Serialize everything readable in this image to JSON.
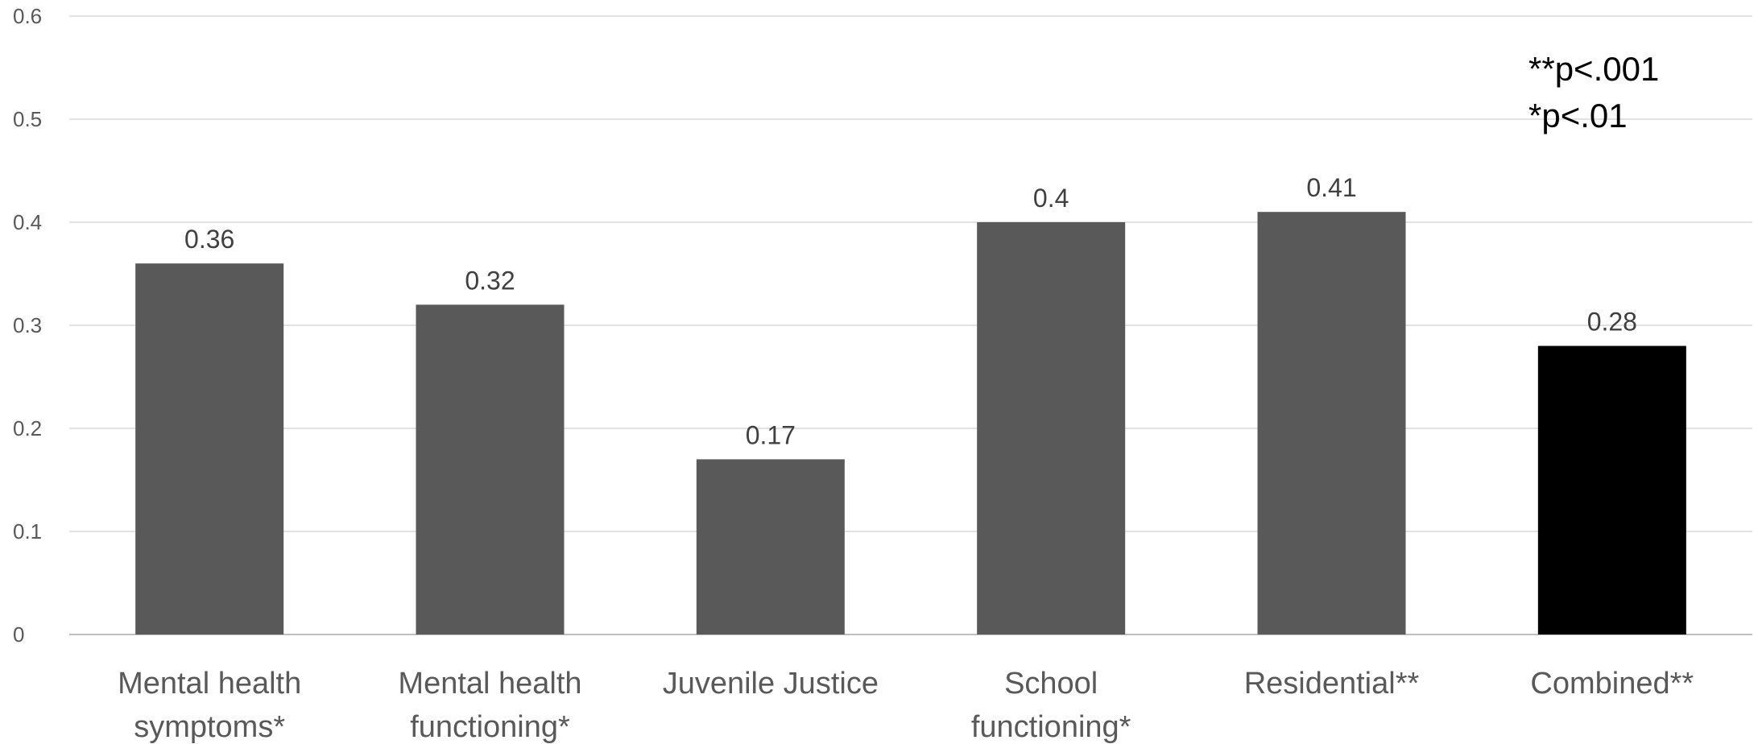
{
  "chart_data": {
    "type": "bar",
    "categories": [
      [
        "Mental health",
        "symptoms*"
      ],
      [
        "Mental health",
        "functioning*"
      ],
      [
        "Juvenile Justice"
      ],
      [
        "School",
        "functioning*"
      ],
      [
        "Residential**"
      ],
      [
        "Combined**"
      ]
    ],
    "values": [
      0.36,
      0.32,
      0.17,
      0.4,
      0.41,
      0.28
    ],
    "value_labels": [
      "0.36",
      "0.32",
      "0.17",
      "0.4",
      "0.41",
      "0.28"
    ],
    "bar_colors": [
      "#595959",
      "#595959",
      "#595959",
      "#595959",
      "#595959",
      "#000000"
    ],
    "ylim": [
      0,
      0.6
    ],
    "yticks": [
      0,
      0.1,
      0.2,
      0.3,
      0.4,
      0.5,
      0.6
    ],
    "ytick_labels": [
      "0",
      "0.1",
      "0.2",
      "0.3",
      "0.4",
      "0.5",
      "0.6"
    ],
    "grid": true,
    "legend": "none",
    "annotations": [
      "**p<.001",
      "*p<.01"
    ]
  }
}
